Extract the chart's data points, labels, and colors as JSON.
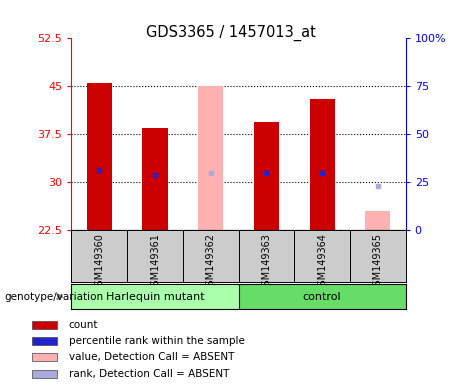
{
  "title": "GDS3365 / 1457013_at",
  "samples": [
    "GSM149360",
    "GSM149361",
    "GSM149362",
    "GSM149363",
    "GSM149364",
    "GSM149365"
  ],
  "ylim_left": [
    22.5,
    52.5
  ],
  "ylim_right": [
    0,
    100
  ],
  "yticks_left": [
    22.5,
    30,
    37.5,
    45,
    52.5
  ],
  "yticks_right": [
    0,
    25,
    50,
    75,
    100
  ],
  "ytick_labels_left": [
    "22.5",
    "30",
    "37.5",
    "45",
    "52.5"
  ],
  "ytick_labels_right": [
    "0",
    "25",
    "50",
    "75",
    "100%"
  ],
  "red_bar_color": "#cc0000",
  "pink_bar_color": "#ffb0b0",
  "blue_marker_color": "#2222cc",
  "lightblue_marker_color": "#aaaadd",
  "count_values": [
    45.5,
    38.5,
    null,
    39.5,
    43.0,
    null
  ],
  "rank_values": [
    32.0,
    31.2,
    null,
    31.5,
    31.5,
    null
  ],
  "absent_value_values": [
    null,
    null,
    45.0,
    null,
    null,
    25.5
  ],
  "absent_rank_values": [
    null,
    null,
    31.5,
    null,
    null,
    29.5
  ],
  "genotype_label": "genotype/variation",
  "group1_label": "Harlequin mutant",
  "group2_label": "control",
  "group1_color": "#aaffaa",
  "group2_color": "#66dd66",
  "label_area_color": "#cccccc",
  "legend_items": [
    {
      "label": "count",
      "color": "#cc0000"
    },
    {
      "label": "percentile rank within the sample",
      "color": "#2222cc"
    },
    {
      "label": "value, Detection Call = ABSENT",
      "color": "#ffb0b0"
    },
    {
      "label": "rank, Detection Call = ABSENT",
      "color": "#aaaadd"
    }
  ]
}
